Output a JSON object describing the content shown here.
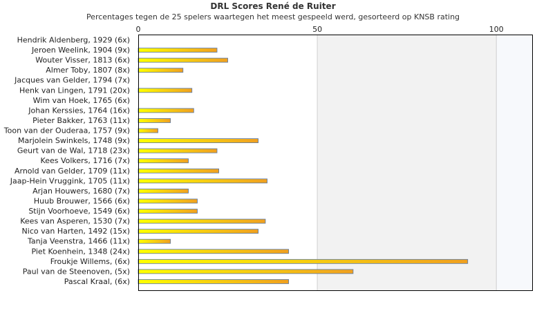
{
  "chart_data": {
    "type": "bar",
    "orientation": "horizontal",
    "title": "DRL Scores René de Ruiter",
    "subtitle": "Percentages tegen de 25 spelers waartegen het meest gespeeld werd, gesorteerd op KNSB rating",
    "xlim": [
      0,
      110
    ],
    "xticks": [
      0,
      50,
      100
    ],
    "categories": [
      "Hendrik Aldenberg, 1929 (6x)",
      "Jeroen Weelink, 1904 (9x)",
      "Wouter Visser, 1813 (6x)",
      "Almer Toby, 1807 (8x)",
      "Jacques van Gelder, 1794 (7x)",
      "Henk van Lingen, 1791 (20x)",
      "Wim van Hoek, 1765 (6x)",
      "Johan Kerssies, 1764 (16x)",
      "Pieter Bakker, 1763 (11x)",
      "Toon van der Ouderaa, 1757 (9x)",
      "Marjolein Swinkels, 1748 (9x)",
      "Geurt van de Wal, 1718 (23x)",
      "Kees Volkers, 1716 (7x)",
      "Arnold van Gelder, 1709 (11x)",
      "Jaap-Hein Vruggink, 1705 (11x)",
      "Arjan Houwers, 1680 (7x)",
      "Huub Brouwer, 1566 (6x)",
      "Stijn Voorhoeve, 1549 (6x)",
      "Kees van Asperen, 1530 (7x)",
      "Nico van Harten, 1492 (15x)",
      "Tanja Veenstra, 1466 (11x)",
      "Piet Koenhein, 1348 (24x)",
      "Froukje Willems,  (6x)",
      "Paul van de Steenoven,  (5x)",
      "Pascal Kraal,  (6x)"
    ],
    "values": [
      0,
      22,
      25,
      12.5,
      0,
      15,
      0,
      15.5,
      9,
      5.5,
      33.5,
      22,
      14,
      22.5,
      36,
      14,
      16.5,
      16.5,
      35.5,
      33.5,
      9,
      42,
      92,
      60,
      42
    ],
    "colors": {
      "bar_start": "#ffff00",
      "bar_end": "#f0a020",
      "bar_edge": "#5577aa",
      "band_light": "#f2f2f2",
      "band_lighter": "#f7f9fc",
      "grid": "#cfcfcf",
      "axis": "#000000"
    }
  }
}
